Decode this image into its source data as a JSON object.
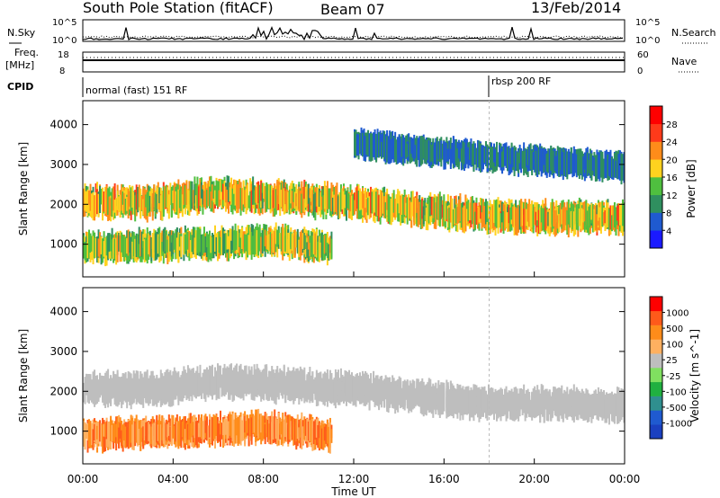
{
  "header": {
    "station": "South Pole Station (fitACF)",
    "beam": "Beam 07",
    "date": "13/Feb/2014"
  },
  "noise_panel": {
    "left_label": "N.Sky",
    "right_label": "N.Search",
    "left_ticks": [
      "10^5",
      "10^0"
    ],
    "right_ticks": [
      "10^5",
      "10^0"
    ]
  },
  "freq_panel": {
    "left_label_line1": "Freq.",
    "left_label_line2": "[MHz]",
    "left_ticks": [
      "18",
      "8"
    ],
    "right_label": "Nave",
    "right_ticks": [
      "60",
      "0"
    ]
  },
  "cpid_panel": {
    "label": "CPID",
    "segments": [
      {
        "name": "normal (fast) 151 RF",
        "start_hour": 0
      },
      {
        "name": "rbsp 200 RF",
        "start_hour": 18.0
      }
    ]
  },
  "x_axis": {
    "title": "Time UT",
    "ticks": [
      "00:00",
      "04:00",
      "08:00",
      "12:00",
      "16:00",
      "20:00",
      "00:00"
    ],
    "range_hours": [
      0,
      24
    ]
  },
  "colors": {
    "power_scale": [
      "#1a1aff",
      "#1f5ad0",
      "#2f8f5f",
      "#4fbf3f",
      "#ffd21f",
      "#ff8c1a",
      "#ff3a1a",
      "#ff0000"
    ],
    "velocity_scale": [
      "#ff0000",
      "#ff5a1a",
      "#ff8c1a",
      "#ffb060",
      "#bebebe",
      "#80e060",
      "#20b040",
      "#2f8f8f",
      "#1f5ad0",
      "#1a40c0"
    ],
    "ground_scatter": "#bebebe"
  },
  "chart_data": [
    {
      "type": "heatmap",
      "panel": "power",
      "ylabel": "Slant Range [km]",
      "ylim": [
        180,
        4600
      ],
      "yticks": [
        1000,
        2000,
        3000,
        4000
      ],
      "xlim": [
        0,
        24
      ],
      "colorbar": {
        "label": "Power [dB]",
        "ticks": [
          "4",
          "8",
          "12",
          "16",
          "20",
          "24",
          "28"
        ],
        "range": [
          0,
          32
        ]
      },
      "bands": [
        {
          "name": "main F-region band",
          "range_km_center": [
            2050,
            2050,
            2250,
            2150,
            2050,
            1850,
            1700,
            1650
          ],
          "hours": [
            0,
            3,
            6,
            9,
            12,
            15,
            18,
            24
          ],
          "peak_power_db": 26
        },
        {
          "name": "lower E-region patches",
          "range_km_center": [
            900,
            1000,
            1100,
            900
          ],
          "hours": [
            0,
            5,
            8,
            11
          ],
          "peak_power_db": 22
        },
        {
          "name": "upper band",
          "range_km_center": [
            3500,
            3300,
            3100,
            2950
          ],
          "hours": [
            12,
            16,
            20,
            24
          ],
          "peak_power_db": 10
        }
      ]
    },
    {
      "type": "heatmap",
      "panel": "velocity",
      "ylabel": "Slant Range [km]",
      "ylim": [
        180,
        4600
      ],
      "yticks": [
        1000,
        2000,
        3000,
        4000
      ],
      "xlim": [
        0,
        24
      ],
      "colorbar": {
        "label": "Velocity [m s^-1]",
        "ticks": [
          "1000",
          "500",
          "100",
          "25",
          "-25",
          "-100",
          "-500",
          "-1000"
        ],
        "range": [
          -1000,
          1000
        ]
      },
      "bands": [
        {
          "name": "ground scatter band",
          "range_km_center": [
            2050,
            2050,
            2250,
            2150,
            2050,
            1850,
            1700,
            1650
          ],
          "hours": [
            0,
            3,
            6,
            9,
            12,
            15,
            18,
            24
          ],
          "velocity": 0
        },
        {
          "name": "lower negative-velocity patches",
          "range_km_center": [
            900,
            1000,
            1100,
            900
          ],
          "hours": [
            0,
            5,
            8,
            11
          ],
          "velocity": -300
        }
      ]
    }
  ]
}
